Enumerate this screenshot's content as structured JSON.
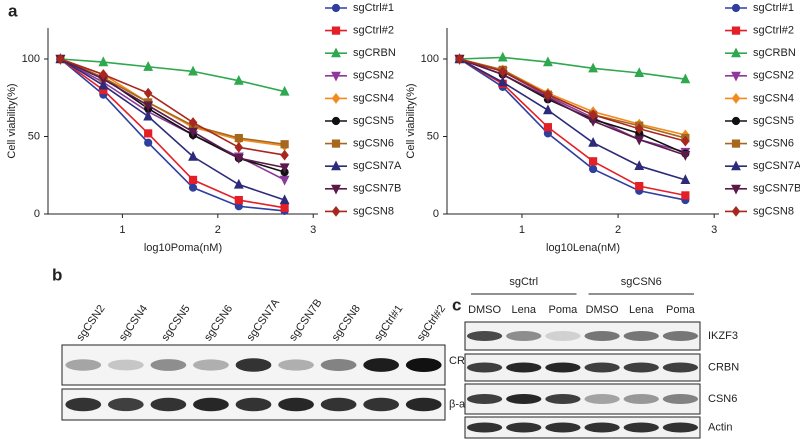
{
  "panel_labels": [
    "a",
    "b",
    "c"
  ],
  "chart_data": [
    {
      "type": "line",
      "xlabel": "log10Poma(nM)",
      "ylabel": "Cell viability(%)",
      "x": [
        0.35,
        0.8,
        1.27,
        1.74,
        2.22,
        2.7
      ],
      "xlim": [
        0.22,
        3.05
      ],
      "ylim": [
        0,
        120
      ],
      "xticks": [
        1,
        2,
        3
      ],
      "yticks": [
        0,
        50,
        100
      ],
      "grid": false,
      "series": [
        {
          "name": "sgCtrl#1",
          "color": "#2e3f9e",
          "marker": "circle",
          "values": [
            100,
            77,
            46,
            17,
            5,
            2
          ]
        },
        {
          "name": "sgCtrl#2",
          "color": "#e41f26",
          "marker": "square",
          "values": [
            100,
            80,
            52,
            22,
            9,
            4
          ]
        },
        {
          "name": "sgCRBN",
          "color": "#2fa84f",
          "marker": "triangle",
          "values": [
            100,
            98,
            95,
            92,
            86,
            79
          ]
        },
        {
          "name": "sgCSN2",
          "color": "#8b3a9c",
          "marker": "triangle-down",
          "values": [
            100,
            85,
            66,
            51,
            37,
            22
          ]
        },
        {
          "name": "sgCSN4",
          "color": "#f28a1e",
          "marker": "diamond",
          "values": [
            100,
            90,
            72,
            56,
            48,
            44
          ]
        },
        {
          "name": "sgCSN5",
          "color": "#111111",
          "marker": "circle",
          "values": [
            100,
            88,
            68,
            51,
            36,
            27
          ]
        },
        {
          "name": "sgCSN6",
          "color": "#a5691e",
          "marker": "square",
          "values": [
            100,
            88,
            72,
            57,
            49,
            45
          ]
        },
        {
          "name": "sgCSN7A",
          "color": "#2d2a7a",
          "marker": "triangle",
          "values": [
            100,
            83,
            63,
            37,
            19,
            9
          ]
        },
        {
          "name": "sgCSN7B",
          "color": "#5a1a4a",
          "marker": "triangle-down",
          "values": [
            100,
            87,
            70,
            53,
            36,
            30
          ]
        },
        {
          "name": "sgCSN8",
          "color": "#a8281f",
          "marker": "diamond",
          "values": [
            100,
            90,
            78,
            59,
            43,
            38
          ]
        }
      ]
    },
    {
      "type": "line",
      "xlabel": "log10Lena(nM)",
      "ylabel": "Cell viability(%)",
      "x": [
        0.35,
        0.8,
        1.27,
        1.74,
        2.22,
        2.7
      ],
      "xlim": [
        0.22,
        3.05
      ],
      "ylim": [
        0,
        120
      ],
      "xticks": [
        1,
        2,
        3
      ],
      "yticks": [
        0,
        50,
        100
      ],
      "grid": false,
      "series": [
        {
          "name": "sgCtrl#1",
          "color": "#2e3f9e",
          "marker": "circle",
          "values": [
            100,
            82,
            52,
            29,
            15,
            9
          ]
        },
        {
          "name": "sgCtrl#2",
          "color": "#e41f26",
          "marker": "square",
          "values": [
            100,
            84,
            56,
            34,
            18,
            12
          ]
        },
        {
          "name": "sgCRBN",
          "color": "#2fa84f",
          "marker": "triangle",
          "values": [
            100,
            101,
            98,
            94,
            91,
            87
          ]
        },
        {
          "name": "sgCSN2",
          "color": "#8b3a9c",
          "marker": "triangle-down",
          "values": [
            100,
            92,
            76,
            62,
            48,
            40
          ]
        },
        {
          "name": "sgCSN4",
          "color": "#f28a1e",
          "marker": "diamond",
          "values": [
            100,
            93,
            78,
            66,
            58,
            51
          ]
        },
        {
          "name": "sgCSN5",
          "color": "#111111",
          "marker": "circle",
          "values": [
            100,
            90,
            74,
            61,
            52,
            39
          ]
        },
        {
          "name": "sgCSN6",
          "color": "#a5691e",
          "marker": "square",
          "values": [
            100,
            93,
            77,
            64,
            57,
            49
          ]
        },
        {
          "name": "sgCSN7A",
          "color": "#2d2a7a",
          "marker": "triangle",
          "values": [
            100,
            85,
            67,
            46,
            31,
            22
          ]
        },
        {
          "name": "sgCSN7B",
          "color": "#5a1a4a",
          "marker": "triangle-down",
          "values": [
            100,
            90,
            75,
            60,
            48,
            38
          ]
        },
        {
          "name": "sgCSN8",
          "color": "#a8281f",
          "marker": "diamond",
          "values": [
            100,
            92,
            77,
            64,
            55,
            47
          ]
        }
      ]
    }
  ],
  "blots": {
    "b": {
      "lanes": [
        "sgCSN2",
        "sgCSN4",
        "sgCSN5",
        "sgCSN6",
        "sgCSN7A",
        "sgCSN7B",
        "sgCSN8",
        "sgCtrl#1",
        "sgCtrl#2"
      ],
      "rows": [
        "CRBN",
        "β-actin"
      ]
    },
    "c": {
      "groups": [
        "sgCtrl",
        "sgCSN6"
      ],
      "lanes": [
        "DMSO",
        "Lena",
        "Poma",
        "DMSO",
        "Lena",
        "Poma"
      ],
      "rows": [
        "IKZF3",
        "CRBN",
        "CSN6",
        "Actin"
      ]
    }
  }
}
